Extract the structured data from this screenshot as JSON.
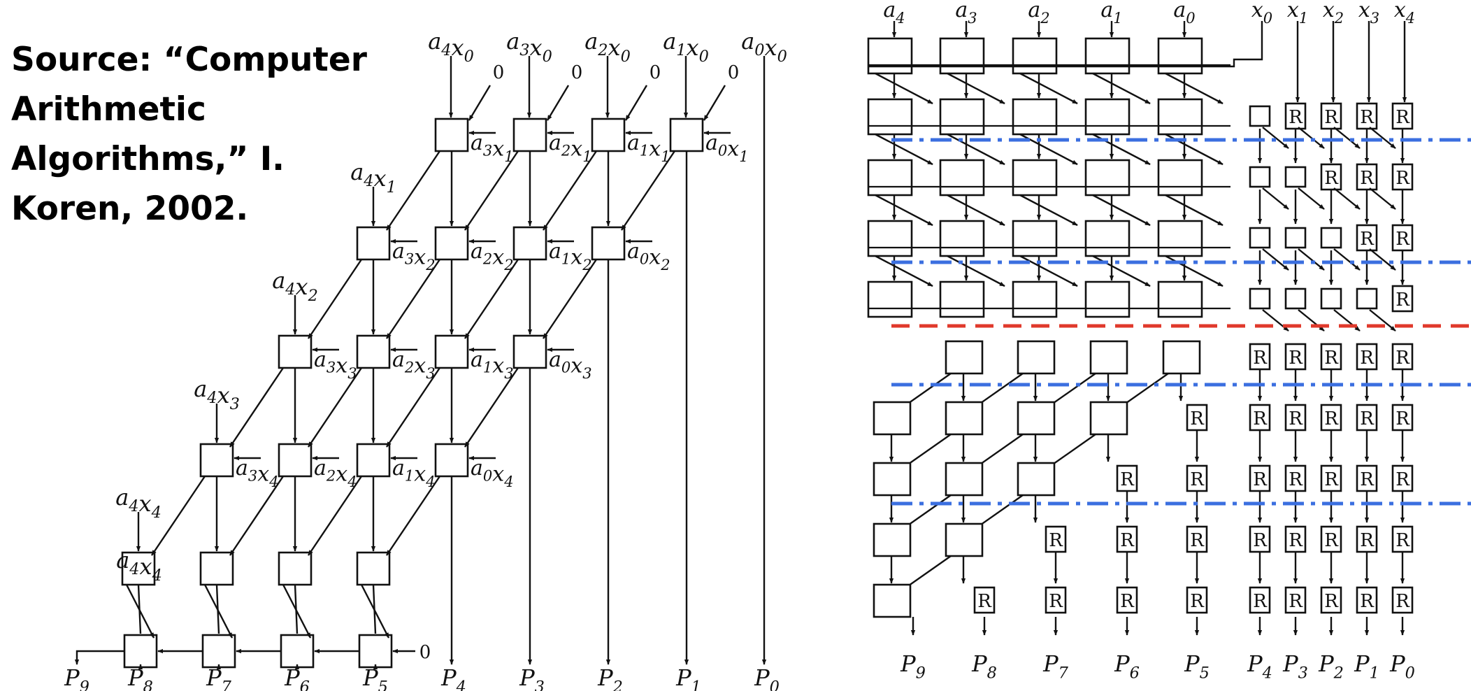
{
  "source": {
    "lines": [
      "Source: “Computer",
      "Arithmetic",
      "Algorithms,” I.",
      "Koren, 2002."
    ]
  },
  "left_array": {
    "top_inputs": [
      {
        "a": "4",
        "x": "0"
      },
      {
        "a": "3",
        "x": "0"
      },
      {
        "a": "2",
        "x": "0"
      },
      {
        "a": "1",
        "x": "0"
      },
      {
        "a": "0",
        "x": "0"
      }
    ],
    "row_left_labels": [
      {
        "a": "4",
        "x": "1"
      },
      {
        "a": "4",
        "x": "2"
      },
      {
        "a": "4",
        "x": "3"
      },
      {
        "a": "4",
        "x": "4"
      }
    ],
    "side_labels": [
      [
        {
          "a": "3",
          "x": "1"
        },
        {
          "a": "2",
          "x": "1"
        },
        {
          "a": "1",
          "x": "1"
        },
        {
          "a": "0",
          "x": "1"
        }
      ],
      [
        {
          "a": "3",
          "x": "2"
        },
        {
          "a": "2",
          "x": "2"
        },
        {
          "a": "1",
          "x": "2"
        },
        {
          "a": "0",
          "x": "2"
        }
      ],
      [
        {
          "a": "3",
          "x": "3"
        },
        {
          "a": "2",
          "x": "3"
        },
        {
          "a": "1",
          "x": "3"
        },
        {
          "a": "0",
          "x": "3"
        }
      ],
      [
        {
          "a": "3",
          "x": "4"
        },
        {
          "a": "2",
          "x": "4"
        },
        {
          "a": "1",
          "x": "4"
        },
        {
          "a": "0",
          "x": "4"
        }
      ]
    ],
    "zero_label": "0",
    "outputs": [
      "9",
      "8",
      "7",
      "6",
      "5",
      "4",
      "3",
      "2",
      "1",
      "0"
    ]
  },
  "right_array": {
    "a_inputs": [
      "4",
      "3",
      "2",
      "1",
      "0"
    ],
    "x_inputs": [
      "0",
      "1",
      "2",
      "3",
      "4"
    ],
    "register_label": "R",
    "outputs": [
      "9",
      "8",
      "7",
      "6",
      "5",
      "4",
      "3",
      "2",
      "1",
      "0"
    ]
  },
  "colors": {
    "pipeline_cut": "#3b6fe0",
    "critical_cut": "#e0392b",
    "line": "#111111"
  }
}
